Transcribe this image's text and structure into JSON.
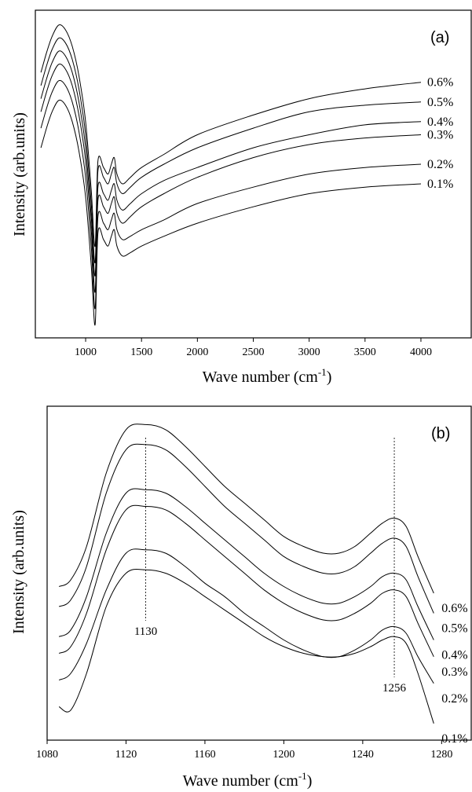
{
  "chart_data": [
    {
      "type": "line",
      "panel_label": "(a)",
      "xlabel": "Wave number (cm",
      "xlabel_sup": "-1",
      "xlabel_close": ")",
      "ylabel": "Intensity (arb.units)",
      "xlim": [
        550,
        4450
      ],
      "x_ticks": [
        1000,
        1500,
        2000,
        2500,
        3000,
        3500,
        4000
      ],
      "y_ticks": false,
      "series": [
        {
          "name": "0.6%",
          "x": [
            600,
            650,
            700,
            760,
            820,
            880,
            940,
            1000,
            1050,
            1085,
            1110,
            1160,
            1200,
            1230,
            1256,
            1280,
            1330,
            1400,
            1500,
            1700,
            2000,
            2500,
            3000,
            3500,
            4000
          ],
          "y": [
            0.81,
            0.87,
            0.92,
            0.955,
            0.94,
            0.89,
            0.8,
            0.66,
            0.45,
            0.28,
            0.54,
            0.52,
            0.5,
            0.53,
            0.55,
            0.5,
            0.47,
            0.49,
            0.52,
            0.56,
            0.62,
            0.68,
            0.73,
            0.76,
            0.78
          ]
        },
        {
          "name": "0.5%",
          "x": [
            600,
            650,
            700,
            760,
            820,
            880,
            940,
            1000,
            1050,
            1085,
            1110,
            1160,
            1200,
            1230,
            1256,
            1280,
            1330,
            1400,
            1500,
            1700,
            2000,
            2500,
            3000,
            3500,
            4000
          ],
          "y": [
            0.77,
            0.83,
            0.88,
            0.915,
            0.9,
            0.85,
            0.76,
            0.62,
            0.41,
            0.23,
            0.51,
            0.49,
            0.47,
            0.5,
            0.52,
            0.47,
            0.44,
            0.46,
            0.49,
            0.53,
            0.58,
            0.64,
            0.69,
            0.71,
            0.72
          ]
        },
        {
          "name": "0.4%",
          "x": [
            600,
            650,
            700,
            760,
            820,
            880,
            940,
            1000,
            1050,
            1085,
            1110,
            1160,
            1200,
            1230,
            1256,
            1280,
            1330,
            1400,
            1500,
            1700,
            2000,
            2500,
            3000,
            3500,
            4000
          ],
          "y": [
            0.73,
            0.79,
            0.84,
            0.875,
            0.86,
            0.81,
            0.72,
            0.58,
            0.37,
            0.19,
            0.46,
            0.44,
            0.42,
            0.45,
            0.47,
            0.42,
            0.39,
            0.41,
            0.44,
            0.48,
            0.52,
            0.58,
            0.62,
            0.65,
            0.66
          ]
        },
        {
          "name": "0.3%",
          "x": [
            600,
            650,
            700,
            760,
            820,
            880,
            940,
            1000,
            1050,
            1085,
            1110,
            1160,
            1200,
            1230,
            1256,
            1280,
            1330,
            1400,
            1500,
            1700,
            2000,
            2500,
            3000,
            3500,
            4000
          ],
          "y": [
            0.69,
            0.75,
            0.8,
            0.835,
            0.82,
            0.77,
            0.68,
            0.54,
            0.33,
            0.14,
            0.42,
            0.4,
            0.38,
            0.41,
            0.43,
            0.38,
            0.35,
            0.37,
            0.4,
            0.44,
            0.49,
            0.55,
            0.59,
            0.61,
            0.62
          ]
        },
        {
          "name": "0.2%",
          "x": [
            600,
            650,
            700,
            760,
            820,
            880,
            940,
            1000,
            1050,
            1085,
            1110,
            1160,
            1200,
            1230,
            1256,
            1280,
            1330,
            1400,
            1500,
            1700,
            2000,
            2500,
            3000,
            3500,
            4000
          ],
          "y": [
            0.64,
            0.7,
            0.75,
            0.785,
            0.77,
            0.72,
            0.63,
            0.49,
            0.28,
            0.09,
            0.37,
            0.35,
            0.33,
            0.36,
            0.38,
            0.33,
            0.3,
            0.31,
            0.33,
            0.36,
            0.41,
            0.46,
            0.5,
            0.52,
            0.53
          ]
        },
        {
          "name": "0.1%",
          "x": [
            600,
            650,
            700,
            760,
            820,
            880,
            940,
            1000,
            1050,
            1085,
            1110,
            1160,
            1200,
            1230,
            1256,
            1280,
            1330,
            1400,
            1500,
            1700,
            2000,
            2500,
            3000,
            3500,
            4000
          ],
          "y": [
            0.58,
            0.64,
            0.69,
            0.725,
            0.71,
            0.66,
            0.57,
            0.43,
            0.22,
            0.04,
            0.32,
            0.3,
            0.28,
            0.31,
            0.33,
            0.28,
            0.25,
            0.26,
            0.28,
            0.31,
            0.35,
            0.4,
            0.44,
            0.46,
            0.47
          ]
        }
      ]
    },
    {
      "type": "line",
      "panel_label": "(b)",
      "xlabel": "Wave number (cm",
      "xlabel_sup": "-1",
      "xlabel_close": ")",
      "ylabel": "Intensity (arb.units)",
      "xlim": [
        1080,
        1295
      ],
      "x_ticks": [
        1080,
        1120,
        1160,
        1200,
        1240,
        1280
      ],
      "y_ticks": false,
      "annotations": [
        {
          "text": "1130",
          "x": 1130
        },
        {
          "text": "1256",
          "x": 1256
        }
      ],
      "series": [
        {
          "name": "0.6%",
          "x": [
            1086,
            1092,
            1100,
            1110,
            1120,
            1130,
            1140,
            1150,
            1160,
            1170,
            1180,
            1190,
            1200,
            1210,
            1220,
            1228,
            1236,
            1244,
            1250,
            1256,
            1262,
            1268,
            1276
          ],
          "y": [
            0.46,
            0.48,
            0.58,
            0.8,
            0.93,
            0.945,
            0.93,
            0.88,
            0.82,
            0.76,
            0.71,
            0.66,
            0.61,
            0.58,
            0.56,
            0.56,
            0.58,
            0.62,
            0.65,
            0.665,
            0.64,
            0.55,
            0.44
          ]
        },
        {
          "name": "0.5%",
          "x": [
            1086,
            1092,
            1100,
            1110,
            1120,
            1130,
            1140,
            1150,
            1160,
            1170,
            1180,
            1190,
            1200,
            1210,
            1220,
            1228,
            1236,
            1244,
            1250,
            1256,
            1262,
            1268,
            1276
          ],
          "y": [
            0.4,
            0.42,
            0.52,
            0.74,
            0.87,
            0.885,
            0.87,
            0.82,
            0.76,
            0.7,
            0.65,
            0.6,
            0.55,
            0.52,
            0.5,
            0.5,
            0.52,
            0.56,
            0.59,
            0.605,
            0.58,
            0.49,
            0.38
          ]
        },
        {
          "name": "0.4%",
          "x": [
            1086,
            1092,
            1100,
            1110,
            1120,
            1130,
            1140,
            1150,
            1160,
            1170,
            1180,
            1190,
            1200,
            1210,
            1220,
            1228,
            1236,
            1244,
            1250,
            1256,
            1262,
            1268,
            1276
          ],
          "y": [
            0.31,
            0.33,
            0.43,
            0.62,
            0.74,
            0.75,
            0.74,
            0.7,
            0.65,
            0.6,
            0.55,
            0.5,
            0.46,
            0.43,
            0.41,
            0.41,
            0.43,
            0.46,
            0.49,
            0.5,
            0.48,
            0.4,
            0.3
          ]
        },
        {
          "name": "0.3%",
          "x": [
            1086,
            1092,
            1100,
            1110,
            1120,
            1130,
            1140,
            1150,
            1160,
            1170,
            1180,
            1190,
            1200,
            1210,
            1220,
            1228,
            1236,
            1244,
            1250,
            1256,
            1262,
            1268,
            1276
          ],
          "y": [
            0.26,
            0.28,
            0.38,
            0.57,
            0.69,
            0.7,
            0.69,
            0.65,
            0.6,
            0.55,
            0.5,
            0.45,
            0.41,
            0.38,
            0.36,
            0.36,
            0.38,
            0.41,
            0.44,
            0.45,
            0.43,
            0.35,
            0.25
          ]
        },
        {
          "name": "0.2%",
          "x": [
            1086,
            1092,
            1100,
            1110,
            1120,
            1130,
            1140,
            1150,
            1160,
            1170,
            1180,
            1190,
            1200,
            1210,
            1220,
            1228,
            1236,
            1244,
            1250,
            1256,
            1262,
            1268,
            1276
          ],
          "y": [
            0.18,
            0.2,
            0.29,
            0.45,
            0.56,
            0.57,
            0.56,
            0.52,
            0.47,
            0.43,
            0.38,
            0.34,
            0.3,
            0.27,
            0.25,
            0.25,
            0.27,
            0.3,
            0.33,
            0.34,
            0.32,
            0.25,
            0.17
          ]
        },
        {
          "name": "0.1%",
          "x": [
            1086,
            1092,
            1100,
            1110,
            1120,
            1130,
            1140,
            1150,
            1160,
            1170,
            1180,
            1190,
            1200,
            1210,
            1220,
            1228,
            1236,
            1244,
            1250,
            1256,
            1262,
            1268,
            1276
          ],
          "y": [
            0.1,
            0.09,
            0.2,
            0.4,
            0.5,
            0.51,
            0.5,
            0.47,
            0.43,
            0.39,
            0.35,
            0.31,
            0.28,
            0.26,
            0.25,
            0.25,
            0.26,
            0.28,
            0.3,
            0.31,
            0.29,
            0.2,
            0.05
          ]
        }
      ]
    }
  ]
}
